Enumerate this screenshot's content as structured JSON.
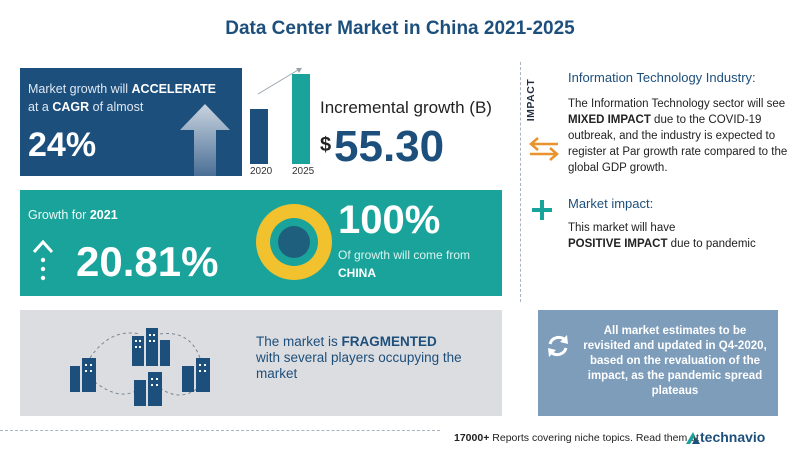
{
  "title": "Data Center Market in China 2021-2025",
  "cagr": {
    "line1_prefix": "Market growth will",
    "line1_bold": "ACCELERATE",
    "line2_prefix": "at a",
    "line2_bold": "CAGR",
    "line2_suffix": "of almost",
    "value": "24%"
  },
  "bars": {
    "years": [
      "2020",
      "2025"
    ],
    "heights_rel": [
      0.55,
      0.9
    ],
    "colors": [
      "#1d4f7c",
      "#1aa39a"
    ]
  },
  "incremental": {
    "label": "Incremental growth (B)",
    "currency": "$",
    "value": "55.30"
  },
  "growth": {
    "for_label": "Growth for",
    "year": "2021",
    "value": "20.81%",
    "share_value": "100%",
    "share_text": "Of growth will come from",
    "country": "CHINA"
  },
  "fragmented": {
    "prefix": "The market is",
    "bold": "FRAGMENTED",
    "rest": "with several players occupying the market"
  },
  "impact": {
    "vertical_label": "IMPACT",
    "industry_title": "Information Technology Industry:",
    "industry_text_1": "The Information Technology sector will see",
    "industry_bold": "MIXED IMPACT",
    "industry_text_2": "due to the COVID-19 outbreak, and the industry is expected to register at Par growth rate compared to the global GDP growth.",
    "market_title": "Market impact:",
    "market_line1": "This market will have",
    "market_bold": "POSITIVE IMPACT",
    "market_line2": "due to pandemic"
  },
  "estimates": {
    "text": "All market estimates to be revisited and updated in Q4-2020, based on the revaluation of the impact, as the pandemic spread plateaus"
  },
  "footer": {
    "count": "17000+",
    "text": "Reports covering niche topics. Read them at",
    "brand": "technavio"
  },
  "colors": {
    "navy": "#1d4f7c",
    "teal": "#1aa39a",
    "orange": "#e8932b",
    "yellow": "#f2c12e",
    "grey": "#dcdde0",
    "steel": "#7d9dbb"
  }
}
